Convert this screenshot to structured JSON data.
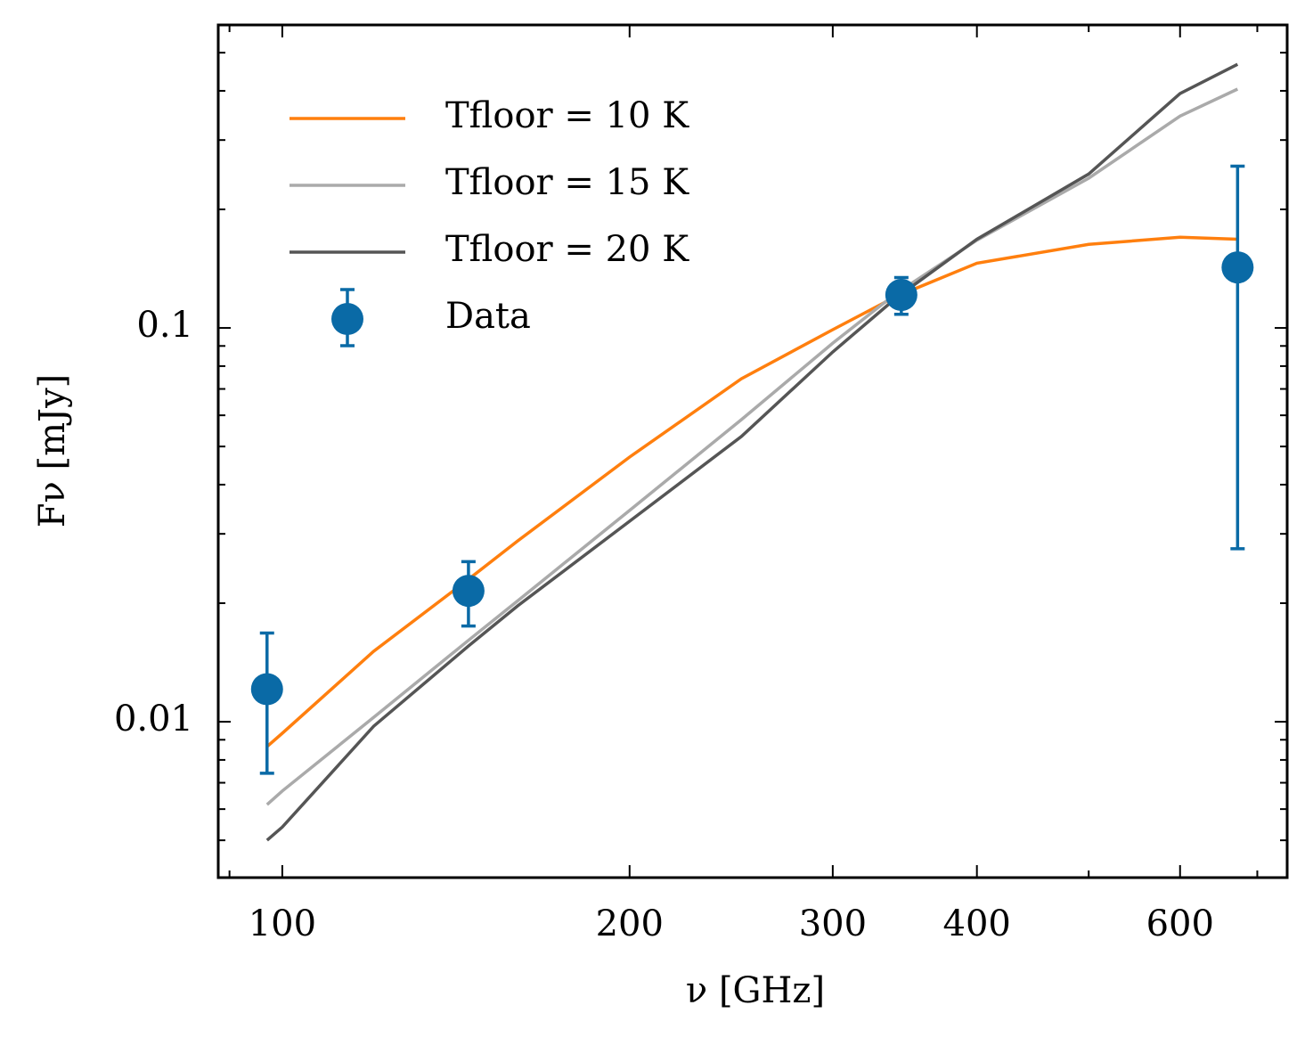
{
  "chart_data": {
    "type": "line",
    "xlabel": "ν [GHz]",
    "ylabel": "Fν [mJy]",
    "xscale": "log",
    "yscale": "log",
    "xlim": [
      88,
      743
    ],
    "ylim": [
      0.00402,
      0.588
    ],
    "xticks": [
      100,
      200,
      300,
      400,
      600
    ],
    "xminor_ticks": [
      90,
      500,
      700
    ],
    "yticks": [
      0.01,
      0.1
    ],
    "yminor_ticks": [
      0.005,
      0.006,
      0.007,
      0.008,
      0.009,
      0.02,
      0.03,
      0.04,
      0.05,
      0.06,
      0.07,
      0.08,
      0.09,
      0.2,
      0.3,
      0.4,
      0.5
    ],
    "legend": "upper left",
    "x": [
      97,
      100,
      120,
      145,
      160,
      200,
      250,
      300,
      340,
      400,
      500,
      600,
      673
    ],
    "series": [
      {
        "name": "Tfloor = 10 K",
        "color": "#ff7f0e",
        "values": [
          0.00865,
          0.00935,
          0.0151,
          0.023,
          0.0288,
          0.047,
          0.0743,
          0.099,
          0.12,
          0.146,
          0.163,
          0.17,
          0.168
        ]
      },
      {
        "name": "Tfloor = 15 K",
        "color": "#aaaaaa",
        "values": [
          0.00616,
          0.00667,
          0.01026,
          0.0161,
          0.0203,
          0.0344,
          0.0585,
          0.0915,
          0.122,
          0.167,
          0.24,
          0.345,
          0.404
        ]
      },
      {
        "name": "Tfloor = 20 K",
        "color": "#555555",
        "values": [
          0.005,
          0.0054,
          0.00974,
          0.01557,
          0.0197,
          0.0323,
          0.053,
          0.0869,
          0.1188,
          0.168,
          0.246,
          0.394,
          0.467
        ]
      }
    ],
    "data": {
      "name": "Data",
      "color": "#0a6aa6",
      "x": [
        97,
        145,
        344,
        673
      ],
      "values": [
        0.0121,
        0.0215,
        0.1213,
        0.1425
      ],
      "yerr": [
        0.0047,
        0.004,
        0.013,
        0.115
      ]
    }
  }
}
